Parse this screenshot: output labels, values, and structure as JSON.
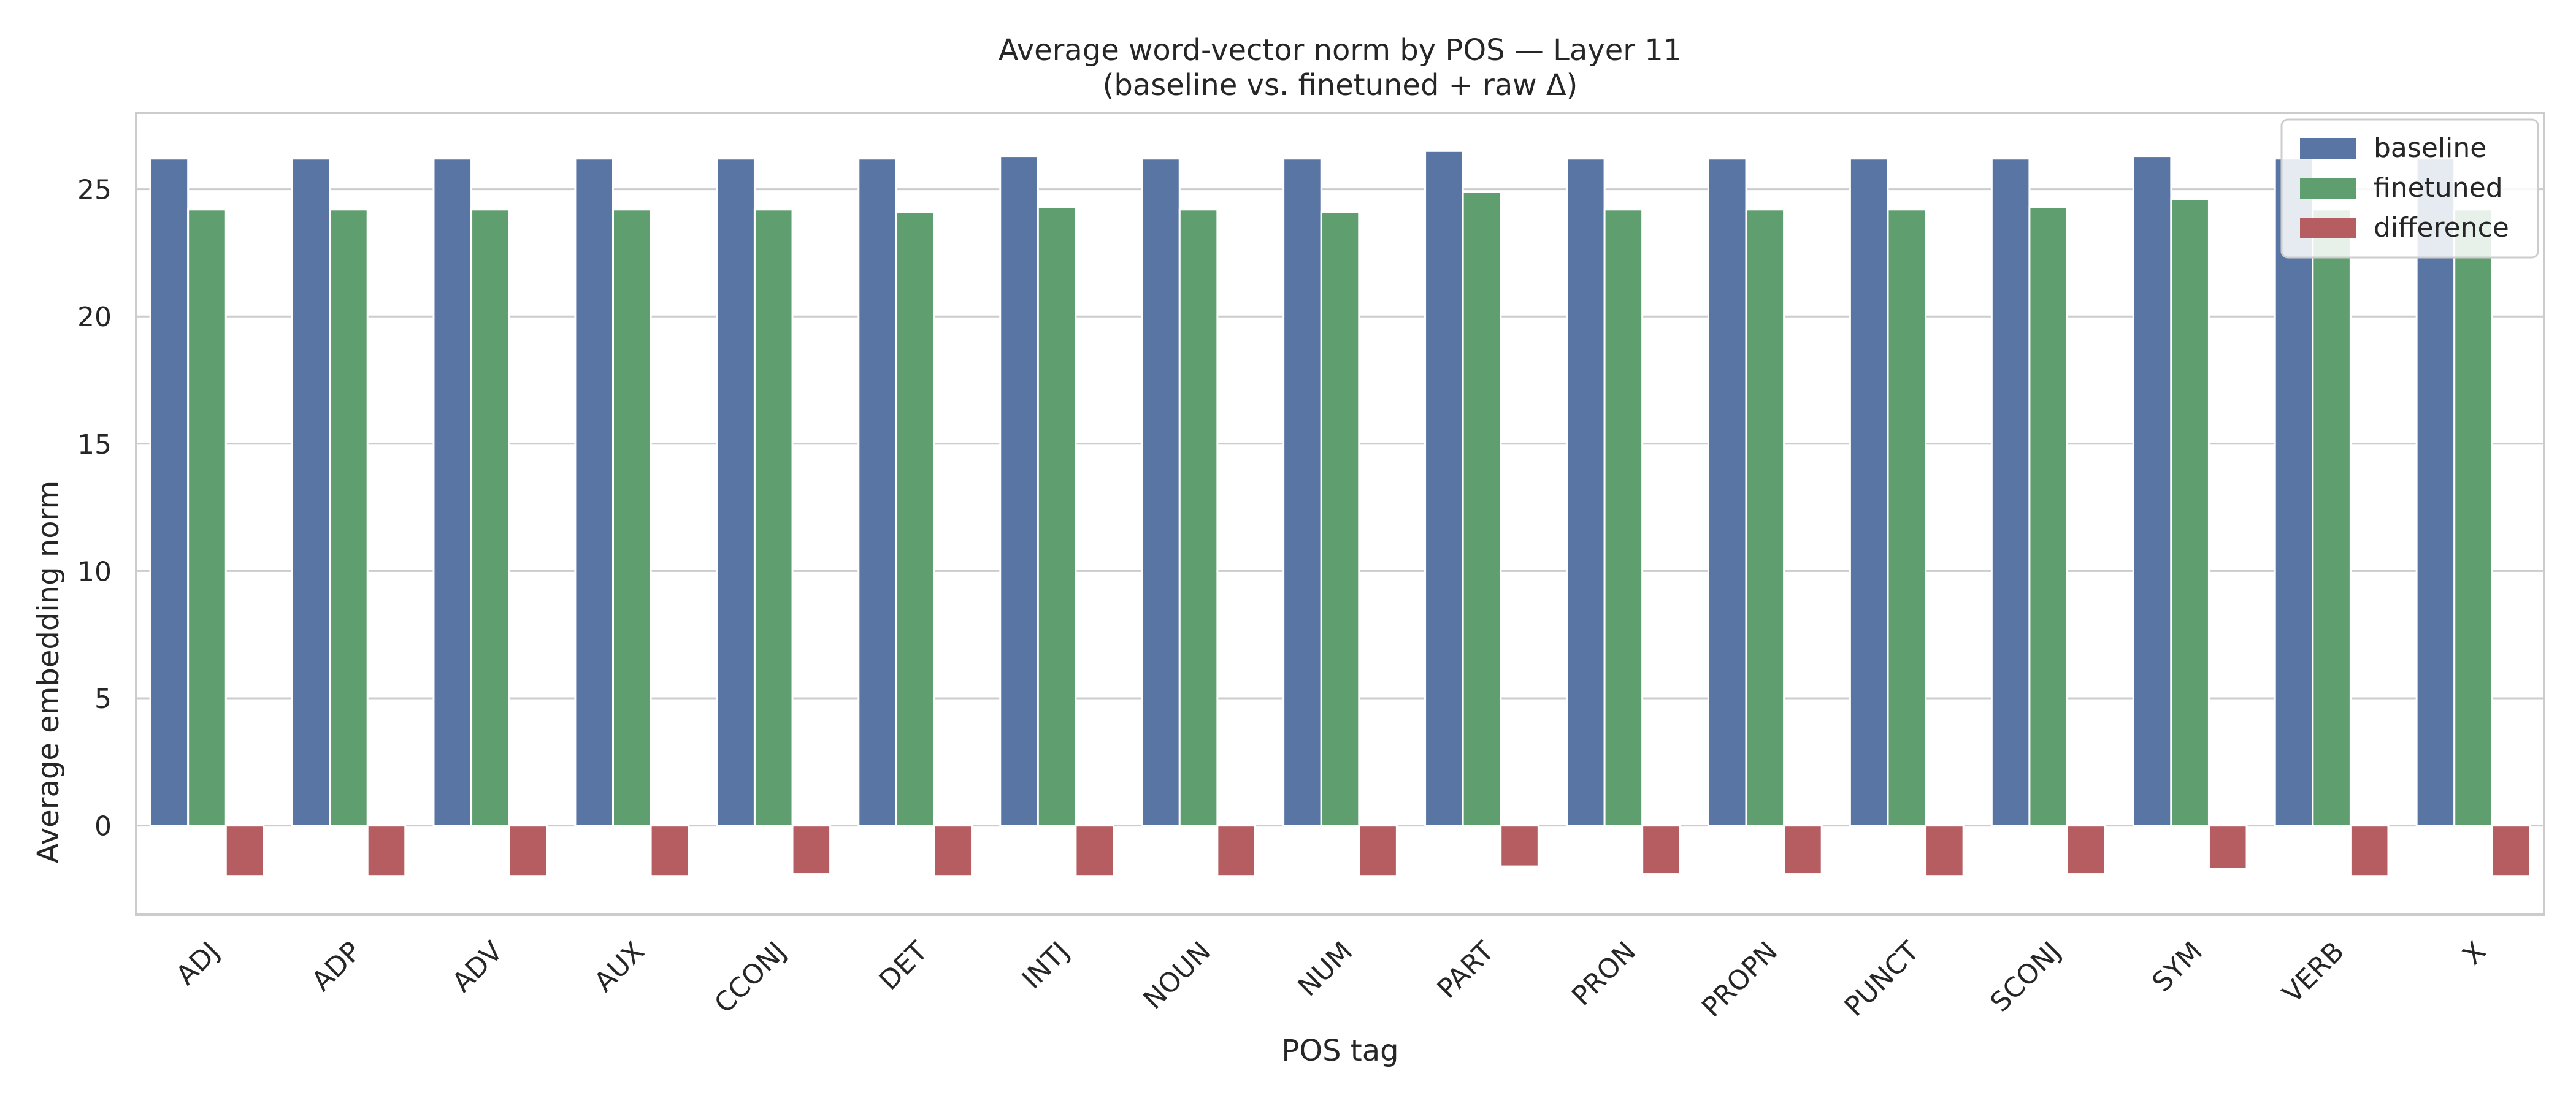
{
  "chart_data": {
    "type": "bar",
    "title": "Average word-vector norm by POS — Layer 11",
    "subtitle": "(baseline vs. finetuned + raw Δ)",
    "xlabel": "POS tag",
    "ylabel": "Average embedding norm",
    "categories": [
      "ADJ",
      "ADP",
      "ADV",
      "AUX",
      "CCONJ",
      "DET",
      "INTJ",
      "NOUN",
      "NUM",
      "PART",
      "PRON",
      "PROPN",
      "PUNCT",
      "SCONJ",
      "SYM",
      "VERB",
      "X"
    ],
    "series": [
      {
        "name": "baseline",
        "color": "#5875a4",
        "values": [
          26.2,
          26.2,
          26.2,
          26.2,
          26.2,
          26.2,
          26.3,
          26.2,
          26.2,
          26.5,
          26.2,
          26.2,
          26.2,
          26.2,
          26.3,
          26.2,
          26.2
        ]
      },
      {
        "name": "finetuned",
        "color": "#5f9e6e",
        "values": [
          24.2,
          24.2,
          24.2,
          24.2,
          24.2,
          24.1,
          24.3,
          24.2,
          24.1,
          24.9,
          24.2,
          24.2,
          24.2,
          24.3,
          24.6,
          24.2,
          24.2
        ]
      },
      {
        "name": "difference",
        "color": "#b55d60",
        "values": [
          -2.0,
          -2.0,
          -2.0,
          -2.0,
          -1.9,
          -2.0,
          -2.0,
          -2.0,
          -2.0,
          -1.6,
          -1.9,
          -1.9,
          -2.0,
          -1.9,
          -1.7,
          -2.0,
          -2.0
        ]
      }
    ],
    "yticks": [
      0,
      5,
      10,
      15,
      20,
      25
    ],
    "ylim": [
      -3.5,
      28.0
    ],
    "grid": true,
    "legend_position": "top-right",
    "colors": {
      "grid": "#cccccc",
      "spine": "#cccccc",
      "text": "#262626",
      "legend_bg": "#ffffff"
    }
  }
}
